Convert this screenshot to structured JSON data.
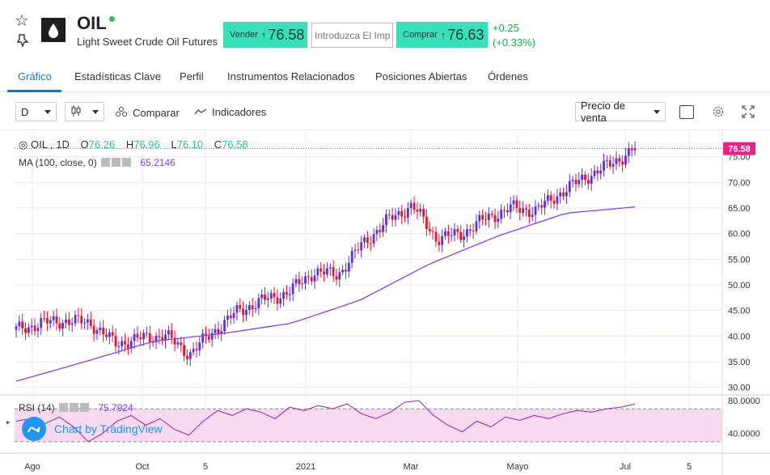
{
  "header": {
    "symbol": "OIL",
    "name": "Light Sweet Crude Oil Futures",
    "sell_label": "Vender",
    "sell_price": "76.58",
    "qty_placeholder": "Introduzca El Imp",
    "buy_label": "Comprar",
    "buy_price": "76.63",
    "change_abs": "+0.25",
    "change_pct": "(+0.33%)",
    "arrow": "↑"
  },
  "tabs": [
    {
      "label": "Gráfico",
      "active": true
    },
    {
      "label": "Estadísticas Clave"
    },
    {
      "label": "Perfil"
    },
    {
      "label": "Instrumentos Relacionados"
    },
    {
      "label": "Posiciones Abiertas"
    },
    {
      "label": "Órdenes"
    }
  ],
  "toolbar": {
    "interval": "D",
    "compare_label": "Comparar",
    "indicators_label": "Indicadores",
    "price_type": "Precio de venta"
  },
  "legend": {
    "title": "OIL , 1D",
    "open_k": "O",
    "open_v": "76.26",
    "high_k": "H",
    "high_v": "76.96",
    "low_k": "L",
    "low_v": "76.10",
    "close_k": "C",
    "close_v": "76.58",
    "ma_label": "MA (100, close, 0)",
    "ma_value": "65.2146",
    "rsi_label": "RSI (14)",
    "rsi_value": "75.7924",
    "watermark": "Chart by TradingView"
  },
  "colors": {
    "up": "#5b2ee8",
    "down": "#e8142a",
    "ma": "#8a3ff0",
    "rsi": "#9b1ea8",
    "accent": "#1a78c2",
    "buy_sell": "#37e0b9",
    "last_price": "#f0208a"
  },
  "chart_data": {
    "type": "line",
    "title": "OIL , 1D",
    "price_axis_ticks": [
      "75.00",
      "70.00",
      "65.00",
      "60.00",
      "55.00",
      "50.00",
      "45.00",
      "40.00",
      "35.00",
      "30.00"
    ],
    "ylim": [
      29,
      80
    ],
    "last_price": "76.58",
    "time_axis_ticks": [
      "Ago",
      "Oct",
      "5",
      "2021",
      "Mar",
      "Mayo",
      "Jul",
      "5"
    ],
    "series": [
      {
        "name": "OIL",
        "x": [
          "Jul 27",
          "Aug 10",
          "Aug 24",
          "Sep 7",
          "Sep 21",
          "Oct 5",
          "Oct 19",
          "Nov 2",
          "Nov 16",
          "Nov 30",
          "Dec 14",
          "Dec 28",
          "Jan 11",
          "Jan 25",
          "Feb 8",
          "Feb 22",
          "Mar 8",
          "Mar 22",
          "Apr 5",
          "Apr 19",
          "May 3",
          "May 17",
          "May 31",
          "Jun 14",
          "Jun 28",
          "Jul 5"
        ],
        "values": [
          41.2,
          42.5,
          43.0,
          42.6,
          38.5,
          39.5,
          40.2,
          36.5,
          41.0,
          45.0,
          47.0,
          48.5,
          52.5,
          52.0,
          58.0,
          62.5,
          65.5,
          59.0,
          60.0,
          63.0,
          65.0,
          64.5,
          68.0,
          71.0,
          73.5,
          76.6
        ]
      },
      {
        "name": "MA (100, close, 0)",
        "x": [
          "Jul 27",
          "Sep 7",
          "Oct 19",
          "Nov 30",
          "Jan 11",
          "Feb 22",
          "Apr 5",
          "May 17",
          "Jun 28",
          "Jul 5"
        ],
        "values": [
          31.2,
          35.0,
          39.0,
          40.5,
          42.5,
          47.0,
          54.0,
          59.5,
          64.0,
          65.2
        ]
      }
    ],
    "rsi": {
      "name": "RSI (14)",
      "ticks": [
        "80.0000",
        "40.0000"
      ],
      "ylim": [
        20,
        85
      ],
      "bands": [
        70,
        30
      ],
      "values": [
        55,
        58,
        52,
        60,
        48,
        30,
        40,
        55,
        62,
        50,
        58,
        45,
        38,
        55,
        68,
        62,
        70,
        66,
        58,
        72,
        68,
        74,
        70,
        76,
        64,
        58,
        66,
        78,
        80,
        62,
        50,
        42,
        55,
        48,
        60,
        56,
        62,
        58,
        64,
        68,
        66,
        70,
        72,
        75.8
      ]
    }
  }
}
